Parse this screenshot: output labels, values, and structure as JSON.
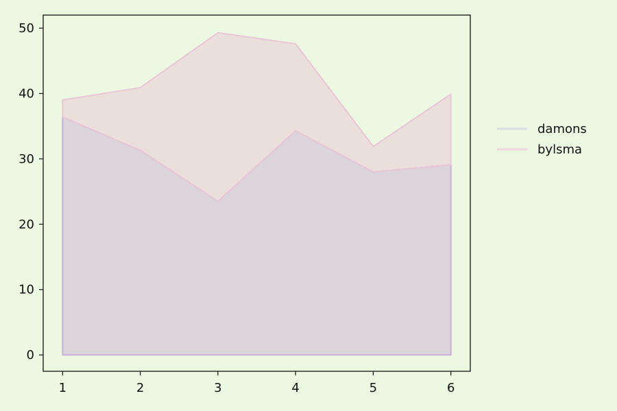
{
  "chart_data": {
    "type": "area",
    "stacked": true,
    "x": [
      1,
      2,
      3,
      4,
      5,
      6
    ],
    "series": [
      {
        "name": "damons",
        "values": [
          36.4,
          31.3,
          23.5,
          34.3,
          28.0,
          29.1
        ],
        "color": "#c9b0d3"
      },
      {
        "name": "bylsma",
        "values": [
          2.6,
          9.6,
          25.8,
          13.3,
          3.9,
          10.8
        ],
        "color": "#e9c6d8"
      }
    ],
    "xlim": [
      0.75,
      6.25
    ],
    "ylim": [
      -2.5,
      52
    ],
    "xticks": [
      1,
      2,
      3,
      4,
      5,
      6
    ],
    "yticks": [
      0,
      10,
      20,
      30,
      40,
      50
    ],
    "grid": false,
    "legend_position": "right",
    "title": "",
    "xlabel": "",
    "ylabel": "",
    "colors": {
      "background": "#ecf8e1",
      "axes_face": "#ecf8e1",
      "axis": "#111111"
    }
  }
}
